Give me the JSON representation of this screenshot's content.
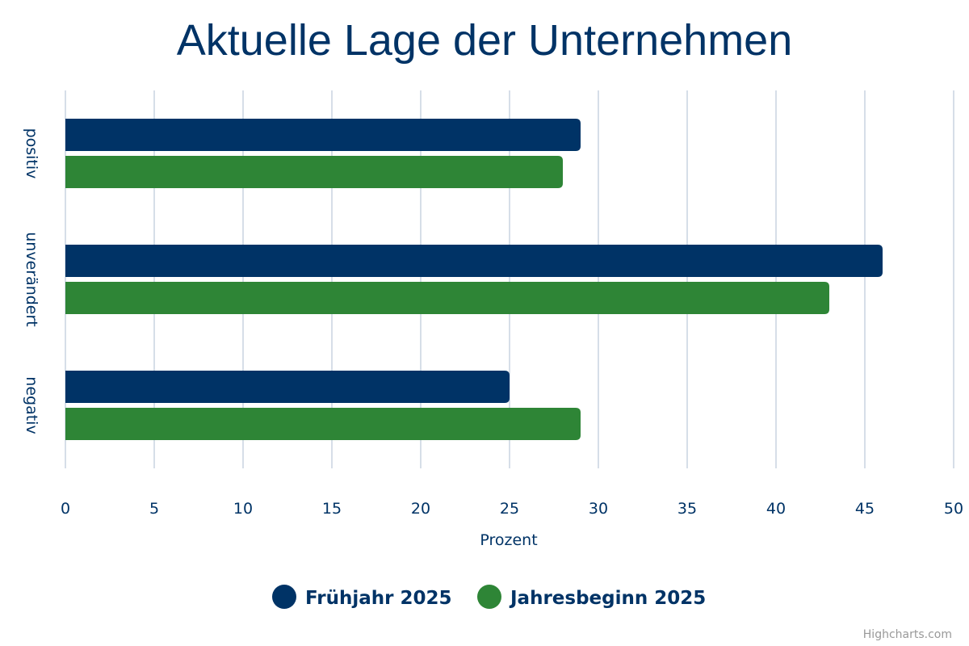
{
  "chart_data": {
    "type": "bar",
    "orientation": "horizontal",
    "title": "Aktuelle Lage der Unternehmen",
    "categories": [
      "positiv",
      "unverändert",
      "negativ"
    ],
    "series": [
      {
        "name": "Frühjahr 2025",
        "color": "#003366",
        "values": [
          29,
          46,
          25
        ]
      },
      {
        "name": "Jahresbeginn 2025",
        "color": "#2e8536",
        "values": [
          28,
          43,
          29
        ]
      }
    ],
    "xlabel": "Prozent",
    "xlim": [
      0,
      50
    ],
    "xticks": [
      "0",
      "5",
      "10",
      "15",
      "20",
      "25",
      "30",
      "35",
      "40",
      "45",
      "50"
    ],
    "grid": true,
    "legend_position": "bottom-center"
  },
  "credit": "Highcharts.com"
}
